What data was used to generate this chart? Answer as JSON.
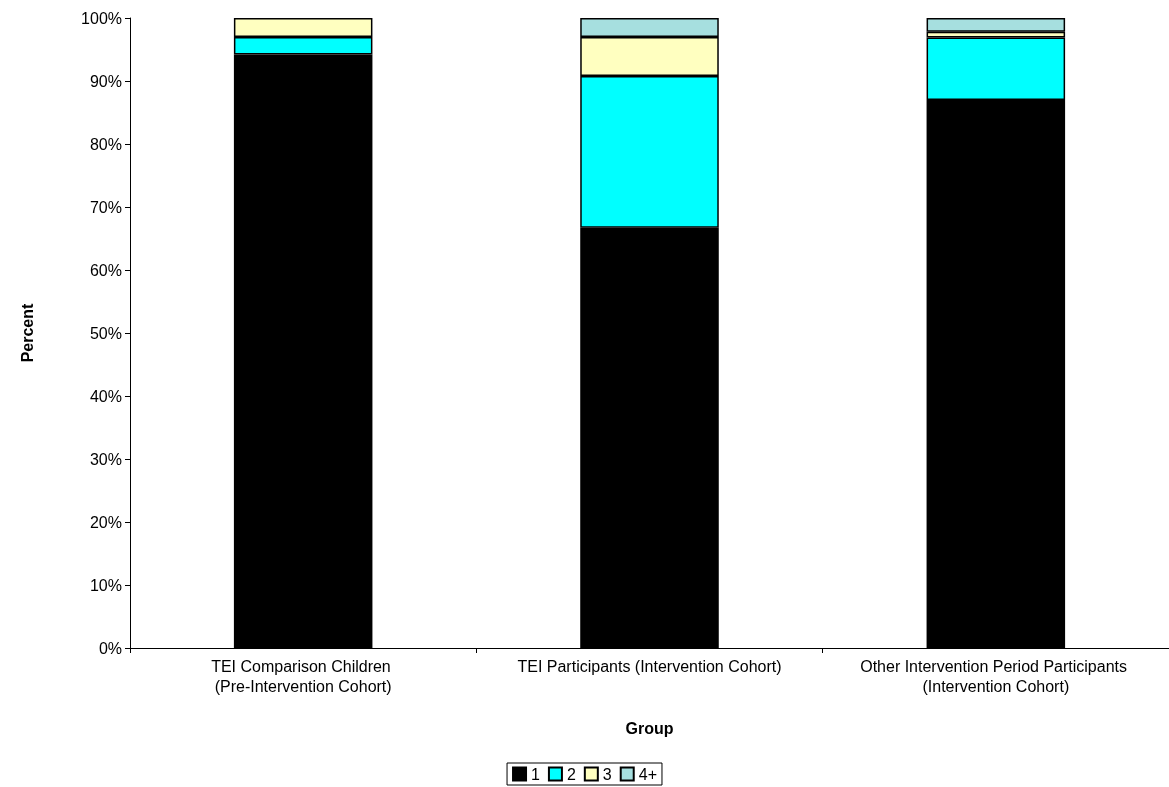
{
  "chart_data": {
    "type": "bar",
    "stacked": true,
    "xlabel": "Group",
    "ylabel": "Percent",
    "categories": [
      "TEI Comparison Children (Pre-Intervention Cohort)",
      "TEI Participants (Intervention Cohort)",
      "Other Intervention Period Participants (Intervention Cohort)"
    ],
    "series": [
      {
        "name": "1",
        "color": "#000000",
        "values": [
          94.2,
          66.7,
          87.0
        ]
      },
      {
        "name": "2",
        "color": "#00ffff",
        "values": [
          2.8,
          24.1,
          9.9
        ]
      },
      {
        "name": "3",
        "color": "#ffffc0",
        "values": [
          3.0,
          6.2,
          0.9
        ]
      },
      {
        "name": "4+",
        "color": "#a6dfdf",
        "values": [
          null,
          3.0,
          2.2
        ]
      }
    ],
    "ylim": [
      0,
      100
    ],
    "yticks": [
      {
        "value": 0,
        "label": "0%"
      },
      {
        "value": 10,
        "label": "10%"
      },
      {
        "value": 20,
        "label": "20%"
      },
      {
        "value": 30,
        "label": "30%"
      },
      {
        "value": 40,
        "label": "40%"
      },
      {
        "value": 50,
        "label": "50%"
      },
      {
        "value": 60,
        "label": "60%"
      },
      {
        "value": 70,
        "label": "70%"
      },
      {
        "value": 80,
        "label": "80%"
      },
      {
        "value": 90,
        "label": "90%"
      },
      {
        "value": 100,
        "label": "100%"
      }
    ],
    "grid": false,
    "legend": "bottom"
  }
}
